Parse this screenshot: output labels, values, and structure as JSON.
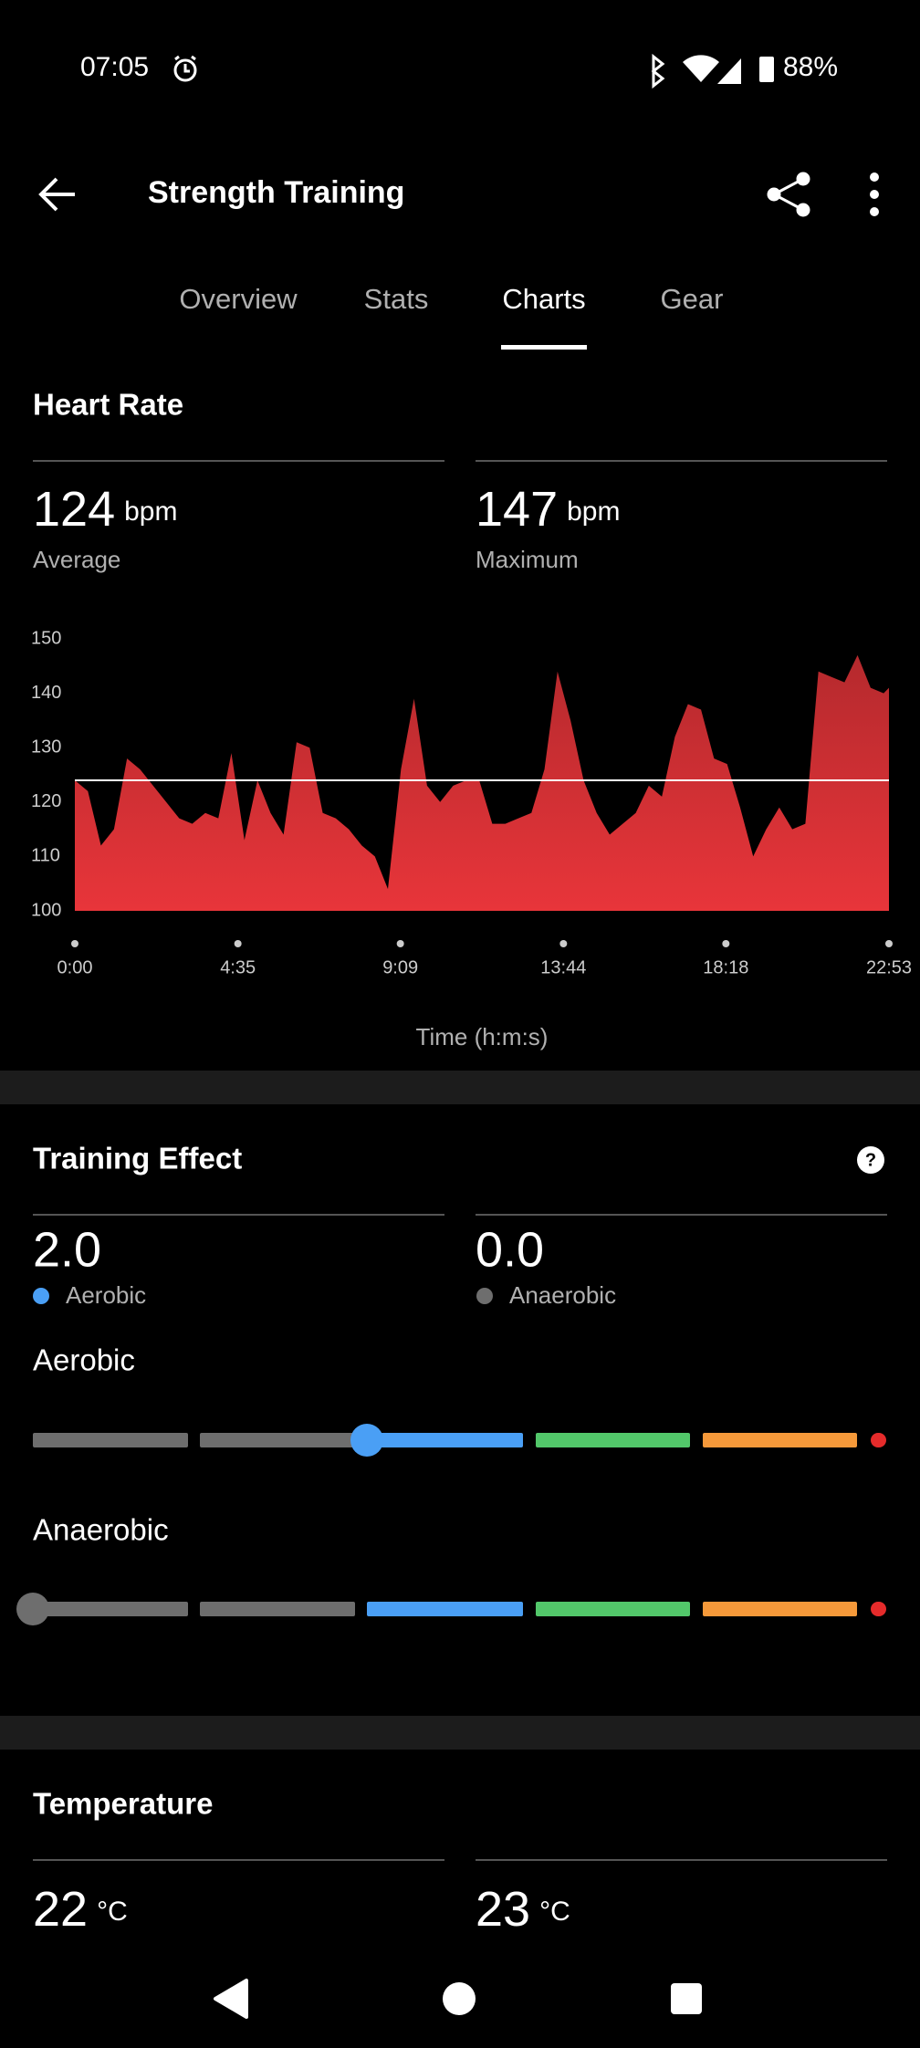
{
  "status_bar": {
    "time": "07:05",
    "battery": "88%"
  },
  "app_bar": {
    "title": "Strength Training"
  },
  "tabs": {
    "items": [
      "Overview",
      "Stats",
      "Charts",
      "Gear"
    ],
    "active": 2
  },
  "heart_rate": {
    "title": "Heart Rate",
    "average": {
      "value": 124,
      "unit": "bpm",
      "label": "Average"
    },
    "maximum": {
      "value": 147,
      "unit": "bpm",
      "label": "Maximum"
    }
  },
  "chart_data": {
    "type": "area",
    "x_label": "Time (h:m:s)",
    "x": [
      0,
      22,
      44,
      66,
      88,
      110,
      132,
      154,
      176,
      198,
      220,
      242,
      264,
      286,
      308,
      330,
      352,
      374,
      396,
      418,
      440,
      462,
      484,
      506,
      528,
      550,
      572,
      594,
      616,
      638,
      660,
      682,
      704,
      726,
      748,
      770,
      792,
      814,
      836,
      858,
      880,
      902,
      924,
      946,
      968,
      990,
      1012,
      1034,
      1056,
      1078,
      1100,
      1122,
      1144,
      1166,
      1188,
      1210,
      1232,
      1254,
      1276,
      1298,
      1320,
      1342,
      1364,
      1373
    ],
    "values": [
      124,
      122,
      112,
      115,
      128,
      126,
      123,
      120,
      117,
      116,
      118,
      117,
      129,
      113,
      124,
      118,
      114,
      131,
      130,
      118,
      117,
      115,
      112,
      110,
      104,
      126,
      139,
      123,
      120,
      123,
      124,
      124,
      116,
      116,
      117,
      118,
      126,
      144,
      135,
      124,
      118,
      114,
      116,
      118,
      123,
      121,
      132,
      138,
      137,
      128,
      127,
      119,
      110,
      115,
      119,
      115,
      116,
      144,
      143,
      142,
      147,
      141,
      140,
      141
    ],
    "color": "#e8353a",
    "xlim": [
      0,
      1373
    ],
    "xticks": [
      {
        "value": 0,
        "label": "0:00"
      },
      {
        "value": 275,
        "label": "4:35"
      },
      {
        "value": 549,
        "label": "9:09"
      },
      {
        "value": 824,
        "label": "13:44"
      },
      {
        "value": 1098,
        "label": "18:18"
      },
      {
        "value": 1373,
        "label": "22:53"
      }
    ],
    "ylim": [
      100,
      150
    ],
    "yticks": [
      100,
      110,
      120,
      130,
      140,
      150
    ],
    "grid": false
  },
  "training_effect": {
    "title": "Training Effect",
    "aerobic": {
      "value": {
        "value": 2,
        "label": "2.0"
      },
      "label": "Aerobic",
      "color": "#4a9ff5"
    },
    "anaerobic": {
      "value": {
        "value": 0,
        "label": "0.0"
      },
      "label": "Anaerobic",
      "color": "#6e6e6e"
    },
    "aerobic_title": "Aerobic",
    "anaerobic_title": "Anaerobic"
  },
  "temperature": {
    "title": "Temperature",
    "min": {
      "value": 22,
      "unit": "°C"
    },
    "max": {
      "value": 23,
      "unit": "°C"
    }
  }
}
